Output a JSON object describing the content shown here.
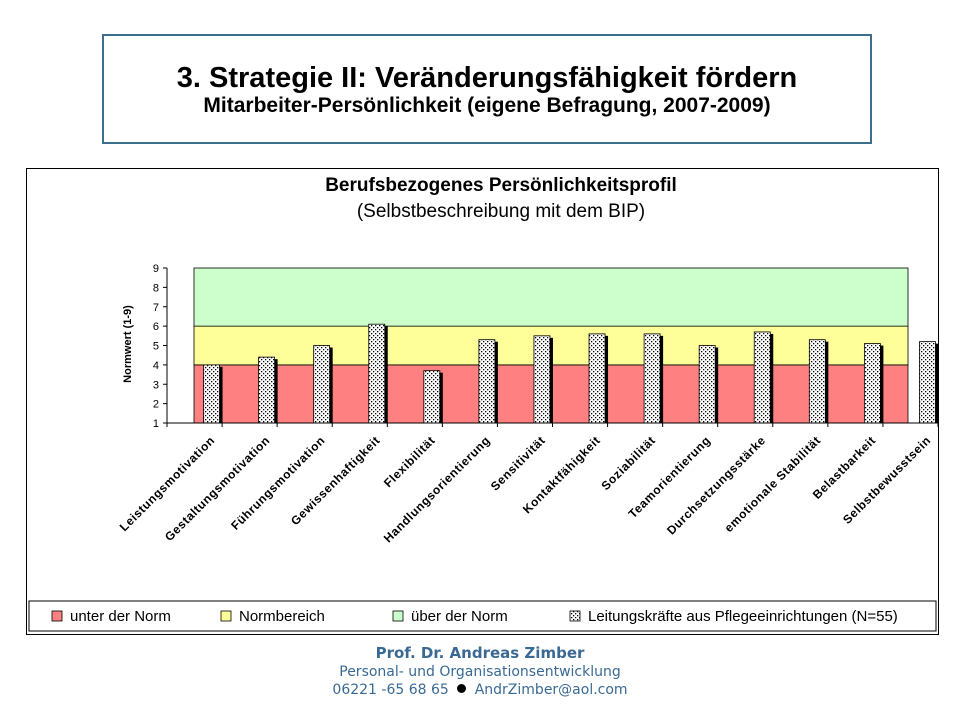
{
  "slide": {
    "title": "3. Strategie II: Veränderungsfähigkeit fördern",
    "subtitle": "Mitarbeiter-Persönlichkeit (eigene Befragung, 2007-2009)"
  },
  "chart_data": {
    "type": "bar",
    "title": "Berufsbezogenes Persönlichkeitsprofil",
    "subtitle": "(Selbstbeschreibung mit dem BIP)",
    "ylabel": "Normwert (1-9)",
    "xlabel": "",
    "ylim": [
      1,
      9
    ],
    "yticks": [
      "1",
      "2",
      "3",
      "4",
      "5",
      "6",
      "7",
      "8",
      "9"
    ],
    "grid": false,
    "legend_position": "bottom",
    "bands": [
      {
        "name": "unter der Norm",
        "from": 1,
        "to": 4,
        "color": "#ff8080"
      },
      {
        "name": "Normbereich",
        "from": 4,
        "to": 6,
        "color": "#ffff99"
      },
      {
        "name": "über der Norm",
        "from": 6,
        "to": 9,
        "color": "#ccffcc"
      }
    ],
    "categories": [
      "Leistungsmotivation",
      "Gestaltungsmotivation",
      "Führungsmotivation",
      "Gewissenhaftigkeit",
      "Flexibilität",
      "Handlungsorientierung",
      "Sensitivität",
      "Kontaktfähigkeit",
      "Soziabilität",
      "Teamorientierung",
      "Durchsetzungsstärke",
      "emotionale Stabilität",
      "Belastbarkeit",
      "Selbstbewusstsein"
    ],
    "series": [
      {
        "name": "Leitungskräfte aus Pflegeeinrichtungen (N=55)",
        "values": [
          4.0,
          4.4,
          5.0,
          6.1,
          3.7,
          5.3,
          5.5,
          5.6,
          5.6,
          5.0,
          5.7,
          5.3,
          5.1,
          5.2
        ],
        "fill": "dotted"
      }
    ],
    "legend": [
      "unter der Norm",
      "Normbereich",
      "über der Norm",
      "Leitungskräfte aus Pflegeeinrichtungen (N=55)"
    ]
  },
  "footer": {
    "name": "Prof. Dr. Andreas Zimber",
    "dept": "Personal- und Organisationsentwicklung",
    "phone": "06221 -65 68 65",
    "email": "AndrZimber@aol.com"
  }
}
